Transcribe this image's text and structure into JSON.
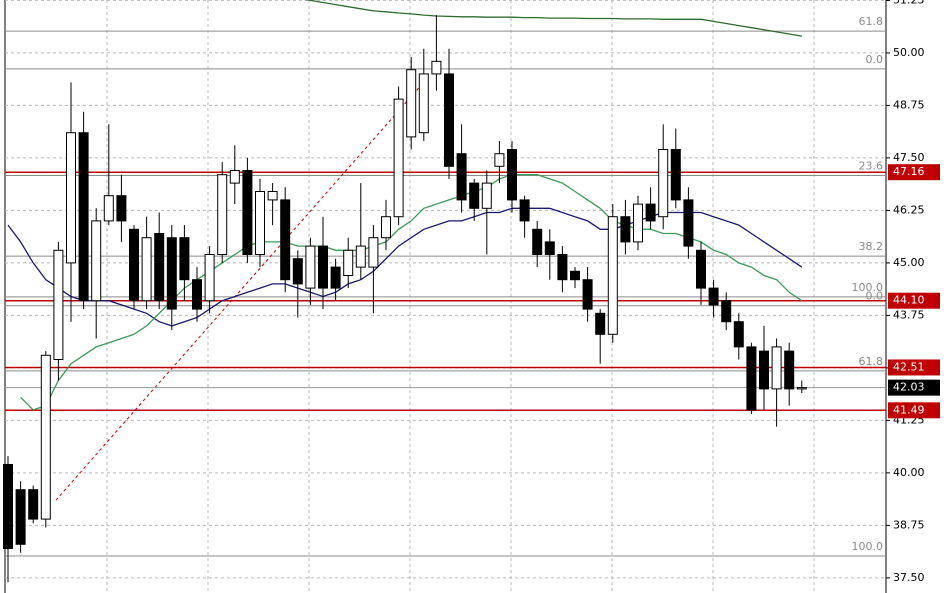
{
  "chart_data": {
    "type": "candlestick",
    "ylim": [
      37.14,
      51.26
    ],
    "yticks": [
      {
        "value": 37.5,
        "label": "37.50"
      },
      {
        "value": 38.75,
        "label": "38.75"
      },
      {
        "value": 40,
        "label": "40.00"
      },
      {
        "value": 41.25,
        "label": "41.25"
      },
      {
        "value": 42.5,
        "label": "42.50"
      },
      {
        "value": 43.75,
        "label": "43.75"
      },
      {
        "value": 45,
        "label": "45.00"
      },
      {
        "value": 46.25,
        "label": "46.25"
      },
      {
        "value": 47.5,
        "label": "47.50"
      },
      {
        "value": 48.75,
        "label": "48.75"
      },
      {
        "value": 50,
        "label": "50.00"
      },
      {
        "value": 51.25,
        "label": "51.25"
      }
    ],
    "grid": true,
    "open": [
      40.2,
      39.6,
      39.6,
      38.9,
      42.7,
      45.0,
      48.1,
      44.1,
      46.0,
      46.6,
      45.8,
      44.1,
      45.7,
      45.6,
      45.6,
      44.6,
      44.1,
      45.2,
      46.9,
      47.2,
      45.2,
      46.5,
      46.5,
      45.1,
      44.4,
      45.4,
      44.9,
      44.7,
      44.9,
      44.9,
      45.6,
      46.1,
      48.0,
      48.1,
      49.5,
      49.5,
      47.6,
      46.9,
      46.3,
      47.3,
      47.7,
      46.5,
      45.8,
      45.5,
      45.2,
      44.8,
      44.6,
      43.8,
      43.3,
      46.1,
      45.5,
      46.4,
      46.1,
      47.7,
      46.5,
      45.3,
      44.4,
      44.1,
      43.6,
      43.0,
      42.9,
      42.0,
      42.9,
      42.0
    ],
    "high": [
      40.4,
      39.8,
      39.7,
      42.9,
      45.5,
      49.3,
      48.6,
      46.3,
      48.3,
      47.1,
      45.9,
      46.1,
      46.2,
      45.9,
      45.9,
      44.9,
      45.4,
      47.4,
      47.8,
      47.5,
      47.0,
      46.9,
      46.8,
      45.3,
      45.6,
      46.1,
      45.1,
      45.6,
      46.9,
      45.9,
      46.5,
      49.2,
      49.9,
      50.1,
      50.9,
      50.1,
      48.3,
      47.0,
      47.2,
      47.9,
      47.9,
      46.6,
      46.0,
      45.8,
      45.4,
      44.9,
      44.9,
      43.9,
      46.4,
      46.5,
      46.6,
      46.8,
      48.3,
      48.2,
      46.8,
      45.5,
      44.6,
      44.3,
      43.8,
      43.1,
      43.5,
      43.2,
      43.1,
      42.2
    ],
    "low": [
      37.4,
      38.1,
      38.8,
      38.7,
      42.2,
      43.6,
      43.9,
      43.2,
      45.9,
      45.5,
      43.9,
      43.9,
      43.9,
      43.4,
      44.1,
      43.6,
      43.8,
      45.0,
      46.4,
      45.0,
      44.9,
      45.9,
      44.3,
      43.7,
      44.0,
      43.9,
      44.1,
      44.4,
      44.6,
      43.8,
      45.3,
      45.9,
      47.7,
      47.9,
      49.1,
      47.0,
      46.2,
      46.0,
      45.2,
      46.9,
      46.2,
      45.6,
      44.9,
      44.6,
      44.3,
      44.4,
      43.6,
      42.6,
      43.1,
      45.2,
      45.3,
      45.8,
      45.8,
      46.3,
      45.1,
      44.0,
      43.7,
      43.4,
      42.7,
      41.4,
      41.5,
      41.1,
      41.6,
      41.9
    ],
    "close": [
      38.2,
      38.3,
      38.9,
      42.8,
      45.3,
      48.1,
      44.1,
      46.0,
      46.6,
      46.0,
      44.1,
      45.6,
      44.1,
      43.9,
      44.6,
      43.9,
      45.2,
      47.1,
      47.2,
      45.2,
      46.7,
      46.7,
      44.6,
      44.5,
      45.4,
      44.4,
      44.4,
      45.3,
      45.4,
      45.6,
      46.1,
      48.9,
      49.6,
      49.5,
      49.8,
      47.3,
      46.5,
      46.3,
      46.9,
      47.6,
      46.5,
      46.0,
      45.2,
      45.2,
      44.6,
      44.6,
      43.9,
      43.3,
      46.1,
      45.5,
      46.4,
      46.0,
      47.7,
      46.5,
      45.4,
      44.4,
      44.0,
      43.6,
      43.0,
      41.5,
      42.0,
      43.0,
      42.0,
      42.03
    ],
    "series": [
      {
        "color": "#1a1a6e",
        "values": [
          45.9,
          45.5,
          45.0,
          44.6,
          44.4,
          44.2,
          44.1,
          44.1,
          44.1,
          44.0,
          43.9,
          43.8,
          43.6,
          43.5,
          43.6,
          43.7,
          43.9,
          44.1,
          44.2,
          44.3,
          44.4,
          44.5,
          44.5,
          44.4,
          44.3,
          44.2,
          44.3,
          44.5,
          44.6,
          44.8,
          45.1,
          45.4,
          45.6,
          45.8,
          45.9,
          46.0,
          46.0,
          46.1,
          46.2,
          46.2,
          46.3,
          46.3,
          46.3,
          46.3,
          46.2,
          46.1,
          46.0,
          45.8,
          45.8,
          45.9,
          46.0,
          46.1,
          46.2,
          46.2,
          46.2,
          46.2,
          46.1,
          46.0,
          45.9,
          45.7,
          45.5,
          45.3,
          45.1,
          44.9
        ]
      },
      {
        "color": "#3c9a5a",
        "values": [
          null,
          41.8,
          41.5,
          41.6,
          42.2,
          42.6,
          42.8,
          43.0,
          43.1,
          43.2,
          43.3,
          43.5,
          43.8,
          44.1,
          44.4,
          44.6,
          44.8,
          45.0,
          45.2,
          45.4,
          45.5,
          45.5,
          45.5,
          45.4,
          45.4,
          45.4,
          45.3,
          45.3,
          45.3,
          45.4,
          45.5,
          45.8,
          46.0,
          46.3,
          46.4,
          46.5,
          46.6,
          46.7,
          46.8,
          47.0,
          47.1,
          47.1,
          47.1,
          47.0,
          46.9,
          46.7,
          46.5,
          46.3,
          46.0,
          45.9,
          45.8,
          45.8,
          45.7,
          45.7,
          45.6,
          45.5,
          45.3,
          45.2,
          45.0,
          44.9,
          44.7,
          44.6,
          44.3,
          44.1
        ]
      },
      {
        "color": "#2e6b2e",
        "values": [
          null,
          null,
          null,
          null,
          null,
          null,
          null,
          null,
          null,
          null,
          null,
          null,
          null,
          null,
          null,
          null,
          null,
          null,
          null,
          null,
          null,
          null,
          null,
          51.3,
          51.25,
          51.2,
          51.15,
          51.1,
          51.05,
          51.0,
          50.98,
          50.95,
          50.93,
          50.9,
          50.88,
          50.87,
          50.86,
          50.86,
          50.85,
          50.85,
          50.85,
          50.84,
          50.84,
          50.83,
          50.83,
          50.83,
          50.82,
          50.82,
          50.82,
          50.81,
          50.81,
          50.81,
          50.8,
          50.8,
          50.8,
          50.8,
          50.75,
          50.7,
          50.65,
          50.6,
          50.55,
          50.5,
          50.45,
          50.4
        ]
      }
    ],
    "trend_line": {
      "x": [
        3.8,
        32.7
      ],
      "values": [
        39.35,
        49.2
      ],
      "color": "#c00000"
    },
    "level_color": "#c00000",
    "levels": [
      {
        "value": 47.16,
        "label": "47.16"
      },
      {
        "value": 44.1,
        "label": "44.10"
      },
      {
        "value": 42.51,
        "label": "42.51"
      },
      {
        "value": 41.49,
        "label": "41.49"
      }
    ],
    "last_price": {
      "value": 42.03,
      "label": "42.03"
    },
    "fib_levels": [
      {
        "value": 50.52,
        "label": "61.8"
      },
      {
        "value": 49.62,
        "label": "0.0"
      },
      {
        "value": 47.08,
        "label": "23.6"
      },
      {
        "value": 45.16,
        "label": "38.2"
      },
      {
        "value": 44.19,
        "label": "100.0"
      },
      {
        "value": 43.98,
        "label": "0.0"
      },
      {
        "value": 42.43,
        "label": "61.8"
      },
      {
        "value": 38.02,
        "label": "100.0"
      }
    ]
  }
}
